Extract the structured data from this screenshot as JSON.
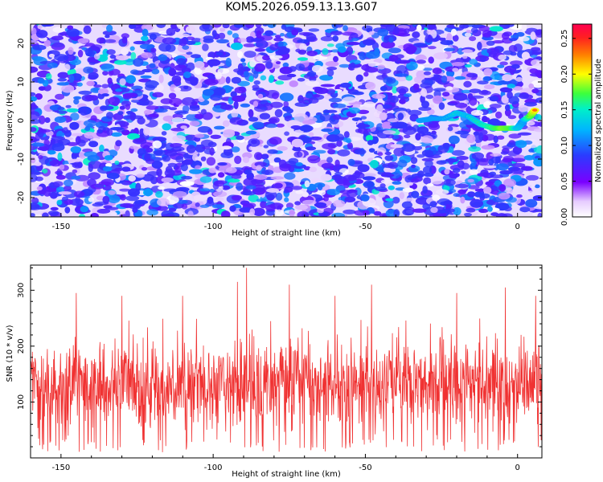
{
  "title": "KOM5.2026.059.13.13.G07",
  "colors": {
    "snr_line": "#f03232",
    "colormap": [
      "#ffffff",
      "#7a00ff",
      "#2a3cff",
      "#00b4ff",
      "#00f0c8",
      "#3cff3c",
      "#ffff00",
      "#ff8000",
      "#ff0050"
    ]
  },
  "chart_data": [
    {
      "type": "heatmap",
      "title": "",
      "xlabel": "Height of straight line (km)",
      "ylabel": "Frequency (Hz)",
      "xlim": [
        -160,
        8
      ],
      "ylim": [
        -25,
        25
      ],
      "xticks": [
        -150,
        -100,
        -50,
        0
      ],
      "yticks": [
        -20,
        -10,
        0,
        10,
        20
      ],
      "colorbar": {
        "label": "Normalized spectral amplitude",
        "range": [
          0,
          0.27
        ],
        "ticks": [
          "0.00",
          "0.05",
          "0.10",
          "0.15",
          "0.20",
          "0.25"
        ],
        "tick_values": [
          0.0,
          0.05,
          0.1,
          0.15,
          0.2,
          0.25
        ]
      },
      "background_level": 0.05,
      "signal_track": {
        "heights_km": [
          -32,
          -28,
          -24,
          -20,
          -16,
          -12,
          -8,
          -5,
          -2,
          0,
          2,
          4,
          6
        ],
        "frequency_hz": [
          0,
          0.5,
          0.5,
          2,
          1,
          -1,
          -2,
          -2,
          -2,
          -2,
          0,
          1,
          3
        ],
        "amplitude": [
          0.09,
          0.1,
          0.12,
          0.15,
          0.14,
          0.16,
          0.19,
          0.22,
          0.21,
          0.15,
          0.13,
          0.2,
          0.25
        ]
      }
    },
    {
      "type": "line",
      "title": "",
      "xlabel": "Height of straight line (km)",
      "ylabel": "SNR (10 * v/v)",
      "xlim": [
        -160,
        8
      ],
      "ylim": [
        0,
        345
      ],
      "xticks": [
        -150,
        -100,
        -50,
        0
      ],
      "yticks": [
        100,
        200,
        300
      ],
      "series": [
        {
          "x_range": [
            -160,
            8
          ],
          "samples": 1400,
          "typical_range": [
            20,
            230
          ],
          "mean": 110,
          "peaks": [
            {
              "x": -89,
              "y": 340
            },
            {
              "x": -92,
              "y": 315
            },
            {
              "x": -75,
              "y": 310
            },
            {
              "x": -48,
              "y": 310
            },
            {
              "x": -4,
              "y": 305
            },
            {
              "x": -145,
              "y": 295
            },
            {
              "x": -130,
              "y": 290
            },
            {
              "x": -110,
              "y": 290
            },
            {
              "x": -60,
              "y": 290
            },
            {
              "x": -20,
              "y": 295
            },
            {
              "x": 6,
              "y": 290
            }
          ]
        }
      ]
    }
  ]
}
